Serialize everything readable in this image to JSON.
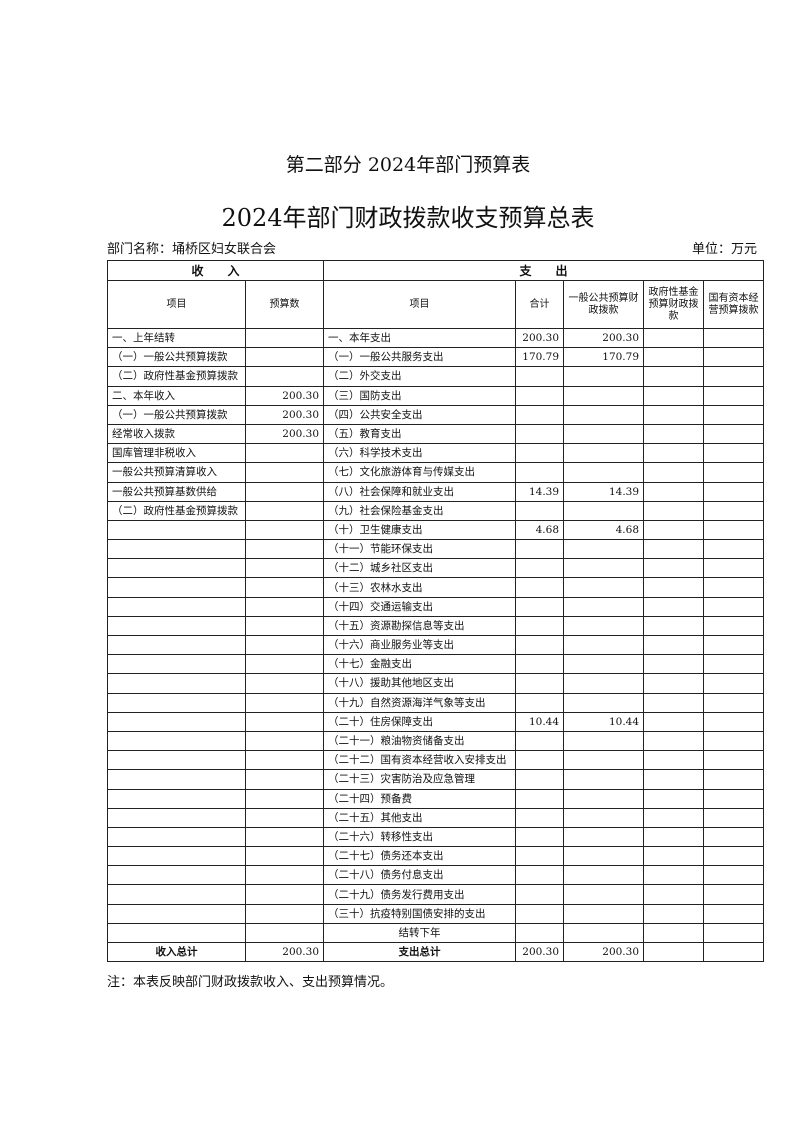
{
  "header": {
    "part_title": "第二部分 2024年部门预算表",
    "title": "2024年部门财政拨款收支预算总表",
    "department": "部门名称：埇桥区妇女联合会",
    "unit": "单位：万元"
  },
  "table": {
    "groups": [
      "收　　入",
      "支　　出"
    ],
    "columns": [
      "项目",
      "预算数",
      "项目",
      "合计",
      "一般公共预算财政拨款",
      "政府性基金预算财政拨款",
      "国有资本经营预算拨款"
    ],
    "rows": [
      [
        "一、上年结转",
        null,
        "一、本年支出",
        "200.30",
        "200.30",
        null,
        null
      ],
      [
        "（一）一般公共预算拨款",
        null,
        "（一）一般公共服务支出",
        "170.79",
        "170.79",
        null,
        null
      ],
      [
        "（二）政府性基金预算拨款",
        null,
        "（二）外交支出",
        null,
        null,
        null,
        null
      ],
      [
        "二、本年收入",
        "200.30",
        "（三）国防支出",
        null,
        null,
        null,
        null
      ],
      [
        "（一）一般公共预算拨款",
        "200.30",
        "（四）公共安全支出",
        null,
        null,
        null,
        null
      ],
      [
        "经常收入拨款",
        "200.30",
        "（五）教育支出",
        null,
        null,
        null,
        null
      ],
      [
        "国库管理非税收入",
        null,
        "（六）科学技术支出",
        null,
        null,
        null,
        null
      ],
      [
        "一般公共预算清算收入",
        null,
        "（七）文化旅游体育与传媒支出",
        null,
        null,
        null,
        null
      ],
      [
        "一般公共预算基数供给",
        null,
        "（八）社会保障和就业支出",
        "14.39",
        "14.39",
        null,
        null
      ],
      [
        "（二）政府性基金预算拨款",
        null,
        "（九）社会保险基金支出",
        null,
        null,
        null,
        null
      ],
      [
        null,
        null,
        "（十）卫生健康支出",
        "4.68",
        "4.68",
        null,
        null
      ],
      [
        null,
        null,
        "（十一）节能环保支出",
        null,
        null,
        null,
        null
      ],
      [
        null,
        null,
        "（十二）城乡社区支出",
        null,
        null,
        null,
        null
      ],
      [
        null,
        null,
        "（十三）农林水支出",
        null,
        null,
        null,
        null
      ],
      [
        null,
        null,
        "（十四）交通运输支出",
        null,
        null,
        null,
        null
      ],
      [
        null,
        null,
        "（十五）资源勘探信息等支出",
        null,
        null,
        null,
        null
      ],
      [
        null,
        null,
        "（十六）商业服务业等支出",
        null,
        null,
        null,
        null
      ],
      [
        null,
        null,
        "（十七）金融支出",
        null,
        null,
        null,
        null
      ],
      [
        null,
        null,
        "（十八）援助其他地区支出",
        null,
        null,
        null,
        null
      ],
      [
        null,
        null,
        "（十九）自然资源海洋气象等支出",
        null,
        null,
        null,
        null
      ],
      [
        null,
        null,
        "（二十）住房保障支出",
        "10.44",
        "10.44",
        null,
        null
      ],
      [
        null,
        null,
        "（二十一）粮油物资储备支出",
        null,
        null,
        null,
        null
      ],
      [
        null,
        null,
        "（二十二）国有资本经营收入安排支出",
        null,
        null,
        null,
        null
      ],
      [
        null,
        null,
        "（二十三）灾害防治及应急管理",
        null,
        null,
        null,
        null
      ],
      [
        null,
        null,
        "（二十四）预备费",
        null,
        null,
        null,
        null
      ],
      [
        null,
        null,
        "（二十五）其他支出",
        null,
        null,
        null,
        null
      ],
      [
        null,
        null,
        "（二十六）转移性支出",
        null,
        null,
        null,
        null
      ],
      [
        null,
        null,
        "（二十七）债务还本支出",
        null,
        null,
        null,
        null
      ],
      [
        null,
        null,
        "（二十八）债务付息支出",
        null,
        null,
        null,
        null
      ],
      [
        null,
        null,
        "（二十九）债务发行费用支出",
        null,
        null,
        null,
        null
      ],
      [
        null,
        null,
        "（三十）抗疫特别国债安排的支出",
        null,
        null,
        null,
        null
      ],
      [
        null,
        null,
        "结转下年",
        null,
        null,
        null,
        null
      ],
      [
        "收入总计",
        "200.30",
        "支出总计",
        "200.30",
        "200.30",
        null,
        null
      ]
    ]
  },
  "note": "注：本表反映部门财政拨款收入、支出预算情况。"
}
